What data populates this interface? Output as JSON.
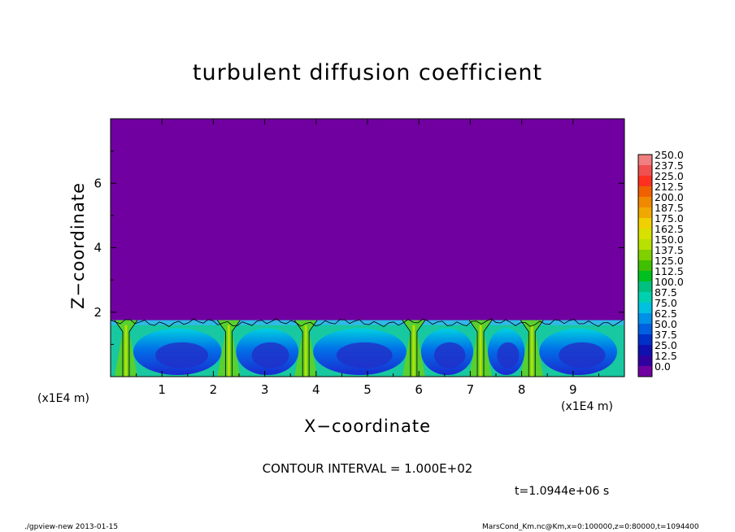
{
  "chart_data": {
    "type": "heatmap",
    "title": "turbulent diffusion coefficient",
    "xlabel": "X−coordinate",
    "ylabel": "Z−coordinate",
    "x_unit_label": "(x1E4 m)",
    "xlim": [
      0,
      10
    ],
    "ylim": [
      0,
      8
    ],
    "x_ticks": [
      "1",
      "2",
      "3",
      "4",
      "5",
      "6",
      "7",
      "8",
      "9"
    ],
    "y_ticks": [
      "2",
      "4",
      "6"
    ],
    "contour_interval_text": "CONTOUR INTERVAL = 1.000E+02",
    "time_text": "t=1.0944e+06 s",
    "field_summary": {
      "background_value": 0.0,
      "mixed_layer_top": 1.75,
      "plume_x": [
        0.3,
        2.3,
        3.8,
        5.9,
        7.2,
        8.2
      ],
      "peak_value": 160
    },
    "colorbar": {
      "labels": [
        "250.0",
        "237.5",
        "225.0",
        "212.5",
        "200.0",
        "187.5",
        "175.0",
        "162.5",
        "150.0",
        "137.5",
        "125.0",
        "112.5",
        "100.0",
        "87.5",
        "75.0",
        "62.5",
        "50.0",
        "37.5",
        "25.0",
        "12.5",
        "0.0"
      ],
      "colors": [
        "#f08080",
        "#f05050",
        "#ff3020",
        "#f06000",
        "#f08800",
        "#f0a800",
        "#f0d000",
        "#d8e000",
        "#b8e000",
        "#80d000",
        "#40c000",
        "#00c020",
        "#00c080",
        "#00d0b0",
        "#00c0e0",
        "#0090e8",
        "#0060e0",
        "#0030c8",
        "#1010b0",
        "#3000a0",
        "#7000a0"
      ]
    }
  },
  "footer": {
    "left": "./gpview-new   2013-01-15",
    "right": "MarsCond_Km.nc@Km,x=0:100000,z=0:80000,t=1094400"
  }
}
